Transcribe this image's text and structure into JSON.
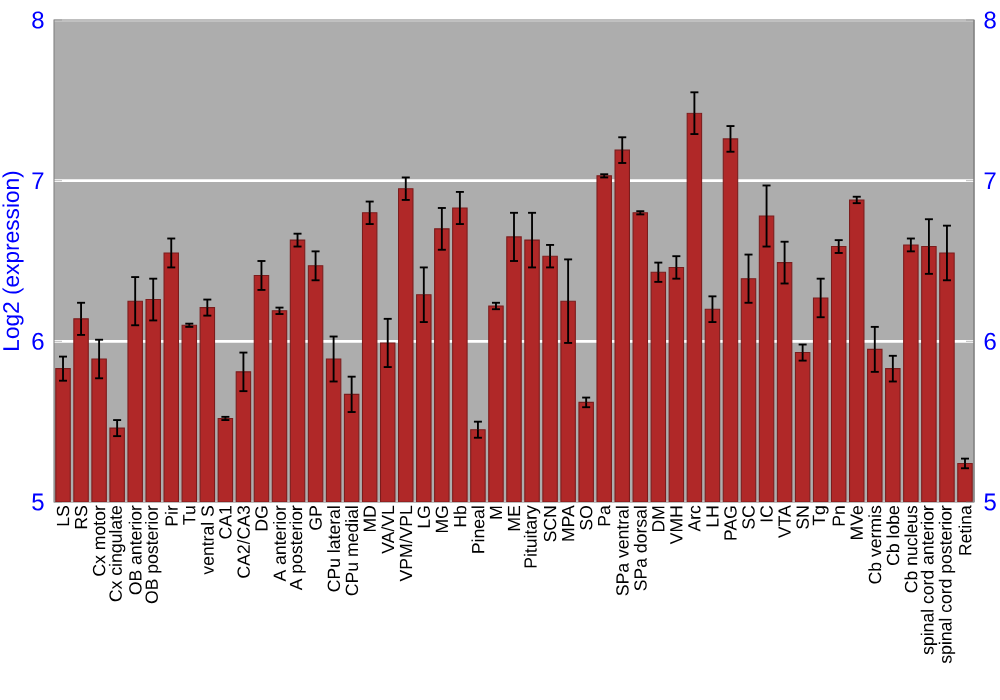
{
  "chart_data": {
    "type": "bar",
    "ylabel": "Log2 (expression)",
    "categories": [
      "LS",
      "RS",
      "Cx motor",
      "Cx cingulate",
      "OB anterior",
      "OB posterior",
      "Pir",
      "Tu",
      "ventral S",
      "CA1",
      "CA2/CA3",
      "DG",
      "A anterior",
      "A posterior",
      "GP",
      "CPu lateral",
      "CPu medial",
      "MD",
      "VA/VL",
      "VPM/VPL",
      "LG",
      "MG",
      "Hb",
      "Pineal",
      "M",
      "ME",
      "Pituitary",
      "SCN",
      "MPA",
      "SO",
      "Pa",
      "SPa ventral",
      "SPa dorsal",
      "DM",
      "VMH",
      "Arc",
      "LH",
      "PAG",
      "SC",
      "IC",
      "VTA",
      "SN",
      "Tg",
      "Pn",
      "MVe",
      "Cb vermis",
      "Cb lobe",
      "Cb nucleus",
      "spinal cord anterior",
      "spinal cord posterior",
      "Retina"
    ],
    "values": [
      5.83,
      6.14,
      5.89,
      5.46,
      6.25,
      6.26,
      6.55,
      6.1,
      6.21,
      5.52,
      5.81,
      6.41,
      6.19,
      6.63,
      6.47,
      5.89,
      5.67,
      6.8,
      5.99,
      6.95,
      6.29,
      6.7,
      6.83,
      5.45,
      6.22,
      6.65,
      6.63,
      6.53,
      6.25,
      5.62,
      7.03,
      7.19,
      6.8,
      6.43,
      6.46,
      7.42,
      6.2,
      7.26,
      6.39,
      6.78,
      6.49,
      5.93,
      6.27,
      6.59,
      6.88,
      5.95,
      5.83,
      6.6,
      6.59,
      6.55,
      5.24
    ],
    "errors": [
      0.075,
      0.1,
      0.12,
      0.05,
      0.15,
      0.13,
      0.09,
      0.01,
      0.05,
      0.01,
      0.12,
      0.09,
      0.02,
      0.04,
      0.09,
      0.14,
      0.11,
      0.07,
      0.15,
      0.07,
      0.17,
      0.13,
      0.1,
      0.05,
      0.02,
      0.15,
      0.17,
      0.07,
      0.26,
      0.03,
      0.01,
      0.08,
      0.01,
      0.06,
      0.07,
      0.13,
      0.08,
      0.08,
      0.15,
      0.19,
      0.13,
      0.05,
      0.12,
      0.04,
      0.02,
      0.14,
      0.08,
      0.04,
      0.17,
      0.17,
      0.03
    ],
    "color": "#b02828",
    "ylim": [
      5,
      8
    ],
    "yticks": [
      5,
      6,
      7,
      8
    ],
    "y2lim": [
      5,
      8
    ],
    "y2ticks": [
      5,
      6,
      7,
      8
    ],
    "grid": "y"
  }
}
